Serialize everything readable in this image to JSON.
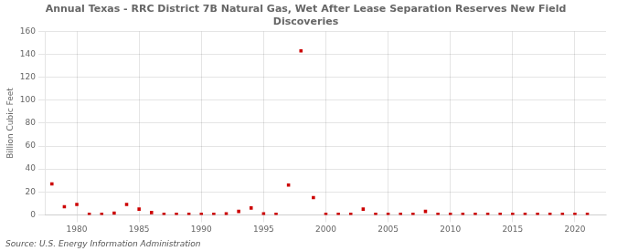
{
  "chart_data": {
    "type": "scatter",
    "title": "Annual Texas - RRC District 7B Natural Gas, Wet After Lease Separation Reserves New Field\nDiscoveries",
    "y_label": "Billion Cubic Feet",
    "annotations": [
      "Source: U.S. Energy Information Administration"
    ],
    "x": [
      1978,
      1979,
      1980,
      1981,
      1982,
      1983,
      1984,
      1985,
      1986,
      1987,
      1988,
      1989,
      1990,
      1991,
      1992,
      1993,
      1994,
      1995,
      1996,
      1997,
      1998,
      1999,
      2000,
      2001,
      2002,
      2003,
      2004,
      2005,
      2006,
      2007,
      2008,
      2009,
      2010,
      2011,
      2012,
      2013,
      2014,
      2015,
      2016,
      2017,
      2018,
      2019,
      2020,
      2021
    ],
    "values": [
      27,
      7,
      9,
      0.5,
      0.5,
      1.5,
      9,
      5,
      2,
      0.5,
      0.5,
      0.5,
      0.5,
      0.5,
      1,
      3,
      6,
      1,
      0.5,
      26,
      143,
      15,
      0.5,
      0.5,
      0.5,
      5,
      0.5,
      0.5,
      0.5,
      0.5,
      3,
      0.5,
      0.5,
      0.5,
      0.5,
      0.5,
      0.5,
      0.5,
      0.5,
      0.5,
      0.5,
      0.5,
      0.5,
      0.5
    ],
    "color": "#cc0000",
    "marker": "square",
    "xlim": [
      1977.5,
      2022.5
    ],
    "xticks": [
      1980,
      1985,
      1990,
      1995,
      2000,
      2005,
      2010,
      2015,
      2020
    ],
    "ylim": [
      0,
      160
    ],
    "yticks": [
      0,
      20,
      40,
      60,
      80,
      100,
      120,
      140,
      160
    ],
    "grid": true
  }
}
